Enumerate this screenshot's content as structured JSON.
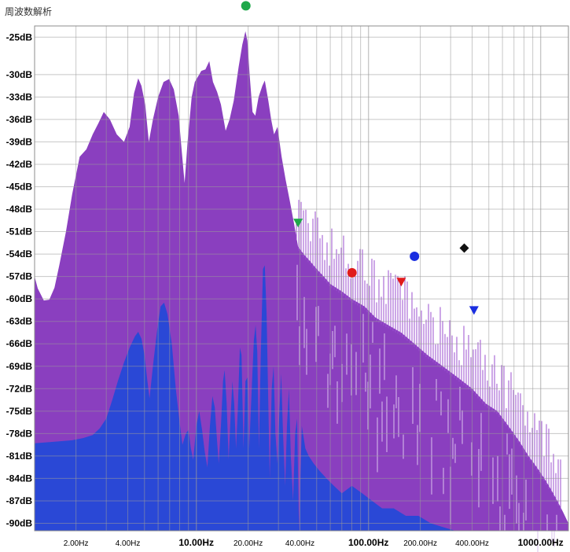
{
  "window": {
    "title": "周波数解析"
  },
  "chart_data": {
    "type": "area",
    "xscale": "log",
    "xlim": [
      1.15,
      1450
    ],
    "ylim": [
      -91,
      -23.5
    ],
    "grid": true,
    "y_ticks": [
      {
        "v": -25,
        "label": "-25dB"
      },
      {
        "v": -30,
        "label": "-30dB"
      },
      {
        "v": -33,
        "label": "-33dB"
      },
      {
        "v": -36,
        "label": "-36dB"
      },
      {
        "v": -39,
        "label": "-39dB"
      },
      {
        "v": -42,
        "label": "-42dB"
      },
      {
        "v": -45,
        "label": "-45dB"
      },
      {
        "v": -48,
        "label": "-48dB"
      },
      {
        "v": -51,
        "label": "-51dB"
      },
      {
        "v": -54,
        "label": "-54dB"
      },
      {
        "v": -57,
        "label": "-57dB"
      },
      {
        "v": -60,
        "label": "-60dB"
      },
      {
        "v": -63,
        "label": "-63dB"
      },
      {
        "v": -66,
        "label": "-66dB"
      },
      {
        "v": -69,
        "label": "-69dB"
      },
      {
        "v": -72,
        "label": "-72dB"
      },
      {
        "v": -75,
        "label": "-75dB"
      },
      {
        "v": -78,
        "label": "-78dB"
      },
      {
        "v": -81,
        "label": "-81dB"
      },
      {
        "v": -84,
        "label": "-84dB"
      },
      {
        "v": -87,
        "label": "-87dB"
      },
      {
        "v": -90,
        "label": "-90dB"
      }
    ],
    "x_ticks": [
      {
        "v": 2,
        "label": "2.00Hz",
        "major": false
      },
      {
        "v": 4,
        "label": "4.00Hz",
        "major": false
      },
      {
        "v": 10,
        "label": "10.00Hz",
        "major": true
      },
      {
        "v": 20,
        "label": "20.00Hz",
        "major": false
      },
      {
        "v": 40,
        "label": "40.00Hz",
        "major": false
      },
      {
        "v": 100,
        "label": "100.00Hz",
        "major": true
      },
      {
        "v": 200,
        "label": "200.00Hz",
        "major": false
      },
      {
        "v": 400,
        "label": "400.00Hz",
        "major": false
      },
      {
        "v": 1000,
        "label": "1000.00Hz",
        "major": true
      }
    ],
    "series": [
      {
        "color": "#8a3fbf",
        "points": [
          [
            1.15,
            -57
          ],
          [
            1.2,
            -58.6
          ],
          [
            1.3,
            -60.2
          ],
          [
            1.4,
            -60.1
          ],
          [
            1.5,
            -58.5
          ],
          [
            1.6,
            -55.5
          ],
          [
            1.75,
            -51
          ],
          [
            1.9,
            -46
          ],
          [
            2.1,
            -41
          ],
          [
            2.3,
            -40
          ],
          [
            2.5,
            -38
          ],
          [
            2.7,
            -36.5
          ],
          [
            2.9,
            -35
          ],
          [
            3.15,
            -36
          ],
          [
            3.45,
            -38
          ],
          [
            3.8,
            -39
          ],
          [
            4.1,
            -37
          ],
          [
            4.35,
            -32.5
          ],
          [
            4.6,
            -30.5
          ],
          [
            4.8,
            -31.5
          ],
          [
            5.05,
            -34
          ],
          [
            5.3,
            -39
          ],
          [
            5.6,
            -36
          ],
          [
            6.0,
            -33
          ],
          [
            6.45,
            -31
          ],
          [
            6.95,
            -30.6
          ],
          [
            7.4,
            -32
          ],
          [
            7.9,
            -35.5
          ],
          [
            8.25,
            -40.5
          ],
          [
            8.55,
            -44.5
          ],
          [
            8.9,
            -39
          ],
          [
            9.4,
            -33
          ],
          [
            9.8,
            -31
          ],
          [
            10.2,
            -30.3
          ],
          [
            10.7,
            -29.5
          ],
          [
            11.3,
            -29.3
          ],
          [
            11.9,
            -28.2
          ],
          [
            12.5,
            -31
          ],
          [
            13.2,
            -32.3
          ],
          [
            13.9,
            -34
          ],
          [
            14.8,
            -37.5
          ],
          [
            15.6,
            -36
          ],
          [
            16.5,
            -33.5
          ],
          [
            17.6,
            -29
          ],
          [
            18.5,
            -26
          ],
          [
            19.3,
            -24.2
          ],
          [
            19.8,
            -25.5
          ],
          [
            20.4,
            -30
          ],
          [
            21.2,
            -35
          ],
          [
            22.0,
            -35.5
          ],
          [
            23.0,
            -33
          ],
          [
            24.2,
            -31.5
          ],
          [
            25.0,
            -30.8
          ],
          [
            26.2,
            -33.5
          ],
          [
            27.2,
            -36
          ],
          [
            28.3,
            -38
          ],
          [
            29.6,
            -37
          ],
          [
            31.3,
            -41
          ],
          [
            33,
            -44
          ],
          [
            35,
            -47
          ],
          [
            37,
            -50
          ],
          [
            39,
            -53
          ],
          [
            42,
            -54
          ],
          [
            46,
            -55
          ],
          [
            50,
            -56
          ],
          [
            55,
            -57
          ],
          [
            60,
            -58
          ],
          [
            70,
            -59
          ],
          [
            80,
            -60
          ],
          [
            95,
            -61
          ],
          [
            110,
            -62.5
          ],
          [
            130,
            -63.5
          ],
          [
            155,
            -64.5
          ],
          [
            185,
            -66
          ],
          [
            220,
            -67.5
          ],
          [
            270,
            -69
          ],
          [
            330,
            -70.5
          ],
          [
            400,
            -72
          ],
          [
            480,
            -74
          ],
          [
            560,
            -75
          ],
          [
            650,
            -77
          ],
          [
            750,
            -79
          ],
          [
            850,
            -81
          ],
          [
            950,
            -82.5
          ],
          [
            1050,
            -84
          ],
          [
            1150,
            -85.5
          ],
          [
            1250,
            -87
          ],
          [
            1350,
            -88.5
          ],
          [
            1450,
            -90
          ]
        ]
      },
      {
        "color": "#2a48d6",
        "points": [
          [
            1.15,
            -79.3
          ],
          [
            1.5,
            -79.1
          ],
          [
            1.9,
            -78.9
          ],
          [
            2.2,
            -78.6
          ],
          [
            2.5,
            -78.2
          ],
          [
            2.75,
            -77.3
          ],
          [
            3.0,
            -76
          ],
          [
            3.25,
            -73.5
          ],
          [
            3.5,
            -71
          ],
          [
            3.8,
            -68.5
          ],
          [
            4.1,
            -66.5
          ],
          [
            4.4,
            -65
          ],
          [
            4.6,
            -64.4
          ],
          [
            4.8,
            -65.3
          ],
          [
            5.0,
            -67.5
          ],
          [
            5.2,
            -71
          ],
          [
            5.35,
            -73.3
          ],
          [
            5.6,
            -69
          ],
          [
            5.9,
            -64.5
          ],
          [
            6.2,
            -61
          ],
          [
            6.5,
            -60.5
          ],
          [
            6.8,
            -62
          ],
          [
            7.2,
            -66
          ],
          [
            7.6,
            -72
          ],
          [
            8.0,
            -76.5
          ],
          [
            8.3,
            -79.5
          ],
          [
            8.7,
            -78
          ],
          [
            9.0,
            -77.5
          ],
          [
            9.3,
            -80
          ],
          [
            9.6,
            -81.5
          ],
          [
            10.0,
            -77
          ],
          [
            10.4,
            -75
          ],
          [
            10.8,
            -77.5
          ],
          [
            11.2,
            -80.5
          ],
          [
            11.6,
            -82.5
          ],
          [
            12.0,
            -77
          ],
          [
            12.4,
            -73
          ],
          [
            12.8,
            -74.5
          ],
          [
            13.2,
            -79
          ],
          [
            13.5,
            -82
          ],
          [
            13.9,
            -77
          ],
          [
            14.3,
            -71
          ],
          [
            14.6,
            -69.5
          ],
          [
            15.0,
            -74
          ],
          [
            15.4,
            -81.5
          ],
          [
            15.8,
            -76
          ],
          [
            16.2,
            -71
          ],
          [
            16.6,
            -74
          ],
          [
            17.0,
            -80
          ],
          [
            17.4,
            -75
          ],
          [
            17.9,
            -66.5
          ],
          [
            18.3,
            -67.5
          ],
          [
            18.8,
            -80
          ],
          [
            19.3,
            -71
          ],
          [
            19.8,
            -70.5
          ],
          [
            20.3,
            -80
          ],
          [
            20.9,
            -73
          ],
          [
            21.6,
            -65.5
          ],
          [
            22.1,
            -63.5
          ],
          [
            22.6,
            -67
          ],
          [
            23.1,
            -80
          ],
          [
            23.7,
            -67
          ],
          [
            24.4,
            -56
          ],
          [
            25.0,
            -55.5
          ],
          [
            25.6,
            -62
          ],
          [
            26.1,
            -72
          ],
          [
            26.7,
            -84
          ],
          [
            27.4,
            -72
          ],
          [
            28.1,
            -69
          ],
          [
            28.8,
            -78
          ],
          [
            29.6,
            -82
          ],
          [
            30.4,
            -75
          ],
          [
            31.1,
            -70
          ],
          [
            31.9,
            -78
          ],
          [
            32.8,
            -85
          ],
          [
            33.6,
            -77
          ],
          [
            34.5,
            -72
          ],
          [
            35.4,
            -81
          ],
          [
            36.5,
            -87
          ],
          [
            37.5,
            -78
          ],
          [
            38.5,
            -76
          ],
          [
            39.5,
            -91
          ],
          [
            41,
            -77
          ],
          [
            43,
            -80
          ],
          [
            45,
            -81
          ],
          [
            48,
            -82
          ],
          [
            52,
            -83
          ],
          [
            57,
            -84
          ],
          [
            63,
            -85
          ],
          [
            70,
            -86
          ],
          [
            80,
            -85
          ],
          [
            92,
            -86
          ],
          [
            105,
            -87
          ],
          [
            120,
            -88
          ],
          [
            140,
            -88
          ],
          [
            165,
            -89
          ],
          [
            195,
            -89
          ],
          [
            230,
            -90
          ],
          [
            270,
            -90.5
          ],
          [
            320,
            -91
          ]
        ]
      }
    ],
    "markers": [
      {
        "x": 19.4,
        "y": -20.8,
        "shape": "circle",
        "color": "#1fa84a"
      },
      {
        "x": 39.0,
        "y": -49.8,
        "shape": "triangle-down",
        "color": "#1fa84a"
      },
      {
        "x": 80.2,
        "y": -56.5,
        "shape": "circle",
        "color": "#e01b1b"
      },
      {
        "x": 155.0,
        "y": -57.7,
        "shape": "triangle-down",
        "color": "#e01b1b"
      },
      {
        "x": 185.0,
        "y": -54.3,
        "shape": "circle",
        "color": "#1a2ee0"
      },
      {
        "x": 360.0,
        "y": -53.2,
        "shape": "diamond",
        "color": "#111111"
      },
      {
        "x": 410.0,
        "y": -61.5,
        "shape": "triangle-down",
        "color": "#1a2ee0"
      }
    ]
  }
}
